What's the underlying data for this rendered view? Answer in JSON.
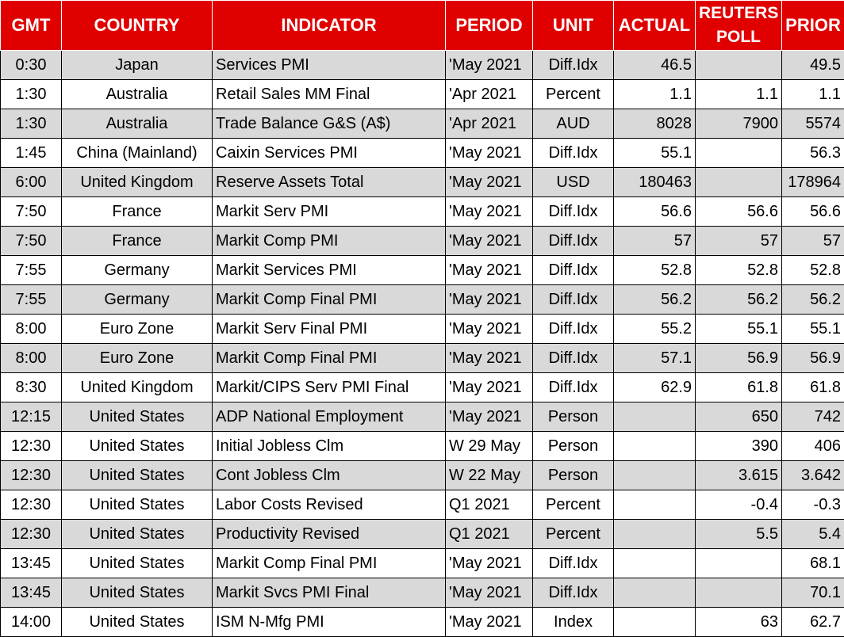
{
  "headers": {
    "gmt": "GMT",
    "country": "COUNTRY",
    "indicator": "INDICATOR",
    "period": "PERIOD",
    "unit": "UNIT",
    "actual": "ACTUAL",
    "poll_line1": "REUTERS",
    "poll_line2": "POLL",
    "prior": "PRIOR"
  },
  "rows": [
    {
      "gmt": "0:30",
      "country": "Japan",
      "indicator": "Services PMI",
      "period": "'May 2021",
      "unit": "Diff.Idx",
      "actual": "46.5",
      "poll": "",
      "prior": "49.5"
    },
    {
      "gmt": "1:30",
      "country": "Australia",
      "indicator": "Retail Sales MM Final",
      "period": "'Apr 2021",
      "unit": "Percent",
      "actual": "1.1",
      "poll": "1.1",
      "prior": "1.1"
    },
    {
      "gmt": "1:30",
      "country": "Australia",
      "indicator": "Trade Balance G&S (A$)",
      "period": "'Apr 2021",
      "unit": "AUD",
      "actual": "8028",
      "poll": "7900",
      "prior": "5574"
    },
    {
      "gmt": "1:45",
      "country": "China (Mainland)",
      "indicator": "Caixin Services PMI",
      "period": "'May 2021",
      "unit": "Diff.Idx",
      "actual": "55.1",
      "poll": "",
      "prior": "56.3"
    },
    {
      "gmt": "6:00",
      "country": "United Kingdom",
      "indicator": "Reserve Assets Total",
      "period": "'May 2021",
      "unit": "USD",
      "actual": "180463",
      "poll": "",
      "prior": "178964"
    },
    {
      "gmt": "7:50",
      "country": "France",
      "indicator": "Markit Serv PMI",
      "period": "'May 2021",
      "unit": "Diff.Idx",
      "actual": "56.6",
      "poll": "56.6",
      "prior": "56.6"
    },
    {
      "gmt": "7:50",
      "country": "France",
      "indicator": "Markit Comp PMI",
      "period": "'May 2021",
      "unit": "Diff.Idx",
      "actual": "57",
      "poll": "57",
      "prior": "57"
    },
    {
      "gmt": "7:55",
      "country": "Germany",
      "indicator": "Markit Services PMI",
      "period": "'May 2021",
      "unit": "Diff.Idx",
      "actual": "52.8",
      "poll": "52.8",
      "prior": "52.8"
    },
    {
      "gmt": "7:55",
      "country": "Germany",
      "indicator": "Markit Comp Final PMI",
      "period": "'May 2021",
      "unit": "Diff.Idx",
      "actual": "56.2",
      "poll": "56.2",
      "prior": "56.2"
    },
    {
      "gmt": "8:00",
      "country": "Euro Zone",
      "indicator": "Markit Serv Final PMI",
      "period": "'May 2021",
      "unit": "Diff.Idx",
      "actual": "55.2",
      "poll": "55.1",
      "prior": "55.1"
    },
    {
      "gmt": "8:00",
      "country": "Euro Zone",
      "indicator": "Markit Comp Final PMI",
      "period": "'May 2021",
      "unit": "Diff.Idx",
      "actual": "57.1",
      "poll": "56.9",
      "prior": "56.9"
    },
    {
      "gmt": "8:30",
      "country": "United Kingdom",
      "indicator": "Markit/CIPS Serv PMI Final",
      "period": "'May 2021",
      "unit": "Diff.Idx",
      "actual": "62.9",
      "poll": "61.8",
      "prior": "61.8"
    },
    {
      "gmt": "12:15",
      "country": "United States",
      "indicator": "ADP National Employment",
      "period": "'May 2021",
      "unit": "Person",
      "actual": "",
      "poll": "650",
      "prior": "742"
    },
    {
      "gmt": "12:30",
      "country": "United States",
      "indicator": "Initial Jobless Clm",
      "period": "W 29 May",
      "unit": "Person",
      "actual": "",
      "poll": "390",
      "prior": "406"
    },
    {
      "gmt": "12:30",
      "country": "United States",
      "indicator": "Cont Jobless Clm",
      "period": "W 22 May",
      "unit": "Person",
      "actual": "",
      "poll": "3.615",
      "prior": "3.642"
    },
    {
      "gmt": "12:30",
      "country": "United States",
      "indicator": "Labor Costs Revised",
      "period": "Q1 2021",
      "unit": "Percent",
      "actual": "",
      "poll": "-0.4",
      "prior": "-0.3"
    },
    {
      "gmt": "12:30",
      "country": "United States",
      "indicator": "Productivity Revised",
      "period": "Q1 2021",
      "unit": "Percent",
      "actual": "",
      "poll": "5.5",
      "prior": "5.4"
    },
    {
      "gmt": "13:45",
      "country": "United States",
      "indicator": "Markit Comp Final PMI",
      "period": "'May 2021",
      "unit": "Diff.Idx",
      "actual": "",
      "poll": "",
      "prior": "68.1"
    },
    {
      "gmt": "13:45",
      "country": "United States",
      "indicator": "Markit Svcs PMI Final",
      "period": "'May 2021",
      "unit": "Diff.Idx",
      "actual": "",
      "poll": "",
      "prior": "70.1"
    },
    {
      "gmt": "14:00",
      "country": "United States",
      "indicator": "ISM N-Mfg PMI",
      "period": "'May 2021",
      "unit": "Index",
      "actual": "",
      "poll": "63",
      "prior": "62.7"
    }
  ],
  "colors": {
    "header_bg": "#e00000",
    "header_text": "#ffffff",
    "shaded_row": "#d9d9d9"
  }
}
